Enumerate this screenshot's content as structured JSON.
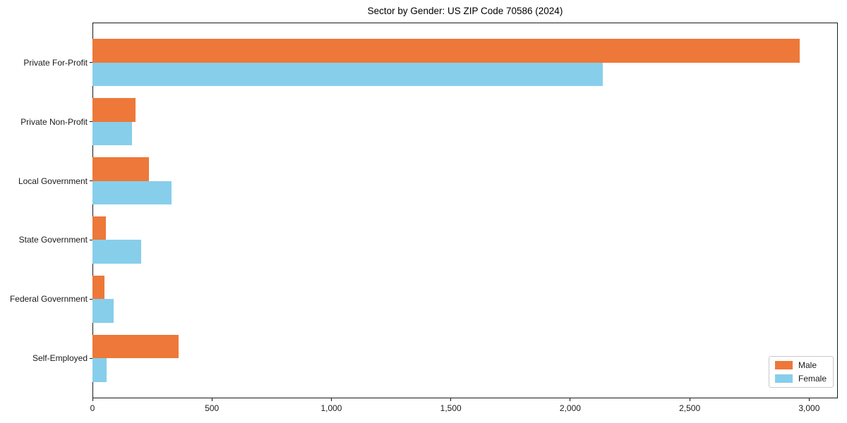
{
  "chart_data": {
    "type": "bar",
    "orientation": "horizontal",
    "title": "Sector by Gender: US ZIP Code 70586 (2024)",
    "categories": [
      "Private For-Profit",
      "Private Non-Profit",
      "Local Government",
      "State Government",
      "Federal Government",
      "Self-Employed"
    ],
    "series": [
      {
        "name": "Male",
        "color": "#ED7839",
        "values": [
          2960,
          180,
          235,
          55,
          50,
          360
        ]
      },
      {
        "name": "Female",
        "color": "#87CEEB",
        "values": [
          2135,
          165,
          330,
          205,
          90,
          60
        ]
      }
    ],
    "xlabel": "",
    "ylabel": "",
    "xlim": [
      0,
      3120
    ],
    "xticks": [
      0,
      500,
      1000,
      1500,
      2000,
      2500,
      3000
    ],
    "xtick_labels": [
      "0",
      "500",
      "1,000",
      "1,500",
      "2,000",
      "2,500",
      "3,000"
    ],
    "grid": false,
    "legend": {
      "position": "lower-right",
      "entries": [
        "Male",
        "Female"
      ]
    },
    "colors": {
      "background": "#ffffff",
      "spine": "#1a1a1a",
      "text": "#1a1a1a"
    }
  }
}
